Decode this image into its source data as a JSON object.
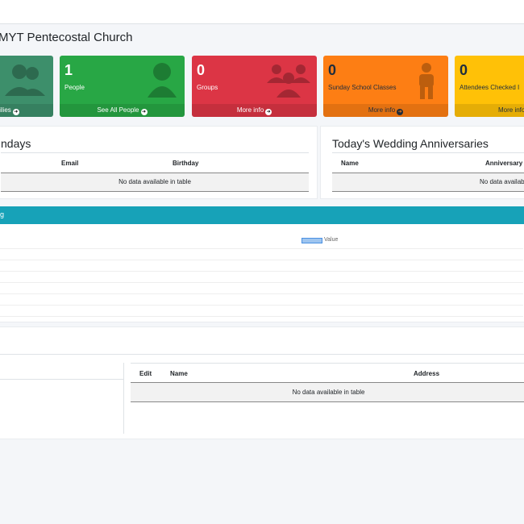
{
  "header": {
    "title": "MYT Pentecostal Church"
  },
  "cards": [
    {
      "number": "",
      "label": "",
      "link": "ilies",
      "color": "#3d8f6b"
    },
    {
      "number": "1",
      "label": "People",
      "link": "See All People",
      "color": "#28a745"
    },
    {
      "number": "0",
      "label": "Groups",
      "link": "More info",
      "color": "#dc3545"
    },
    {
      "number": "0",
      "label": "Sunday School Classes",
      "link": "More info",
      "color": "#fd7e14"
    },
    {
      "number": "0",
      "label": "Attendees Checked I",
      "link": "More info",
      "color": "#ffc107"
    }
  ],
  "birthdays": {
    "title": "ndays",
    "columns": [
      "Email",
      "Birthday"
    ],
    "empty": "No data available in table"
  },
  "anniversaries": {
    "title": "Today's Wedding Anniversaries",
    "columns": [
      "Name",
      "Anniversary"
    ],
    "empty": "No data available in ta"
  },
  "chart": {
    "header": "g",
    "legend": "Value",
    "legend_color": "#9ec5ef"
  },
  "families": {
    "columns": [
      "Edit",
      "Name",
      "Address"
    ],
    "empty": "No data available in table"
  }
}
